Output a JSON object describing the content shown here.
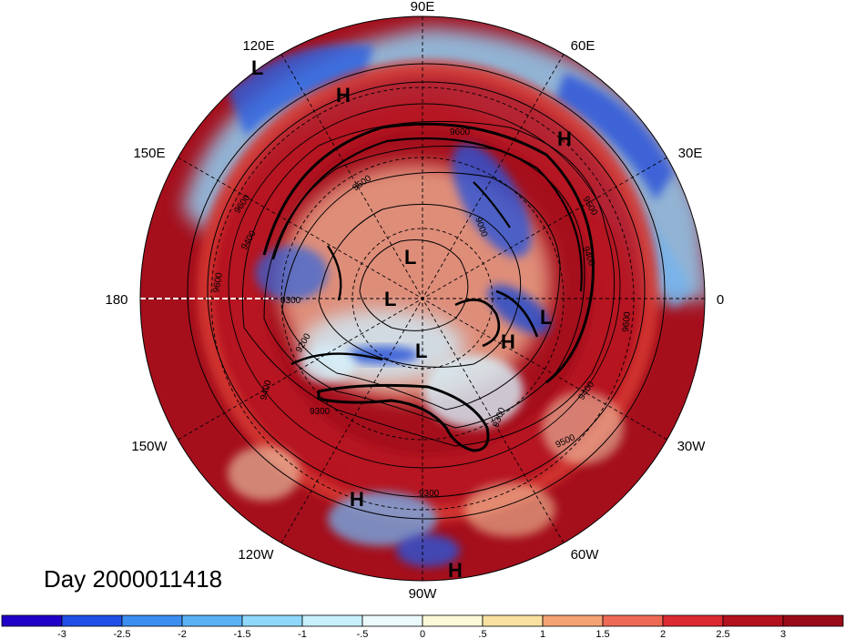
{
  "day_label": "Day 2000011418",
  "longitude_labels": [
    "90E",
    "60E",
    "30E",
    "0",
    "30W",
    "60W",
    "90W",
    "120W",
    "150W",
    "180",
    "150E",
    "120E"
  ],
  "pressure_systems": [
    {
      "label": "L",
      "name": "low-120e"
    },
    {
      "label": "H",
      "name": "high-100e"
    },
    {
      "label": "H",
      "name": "high-40e"
    },
    {
      "label": "L",
      "name": "low-arctic-north"
    },
    {
      "label": "L",
      "name": "low-arctic-center"
    },
    {
      "label": "L",
      "name": "low-arctic-south"
    },
    {
      "label": "L",
      "name": "low-atlantic"
    },
    {
      "label": "H",
      "name": "high-atlantic"
    },
    {
      "label": "H",
      "name": "high-110w"
    },
    {
      "label": "H",
      "name": "high-85w"
    }
  ],
  "contour_labels": [
    "9600",
    "9400",
    "9300",
    "9200",
    "9400",
    "9300",
    "9300",
    "9500",
    "9400",
    "9600",
    "9600",
    "9500",
    "9000",
    "9300",
    "9400",
    "9500",
    "9600"
  ],
  "colorbar": {
    "colors": [
      "#2000c8",
      "#1f4fe6",
      "#3c8ef0",
      "#5ab2f5",
      "#8fd8fb",
      "#c7f0fd",
      "#ebfafd",
      "#fcf9d8",
      "#f9e1a2",
      "#f4a374",
      "#ee6a55",
      "#dc2a32",
      "#b4111e",
      "#9a0b18"
    ],
    "tick_labels": [
      "-3",
      "-2.5",
      "-2",
      "-1.5",
      "-1",
      "-.5",
      "0",
      ".5",
      "1",
      "1.5",
      "2",
      "2.5",
      "3"
    ]
  }
}
